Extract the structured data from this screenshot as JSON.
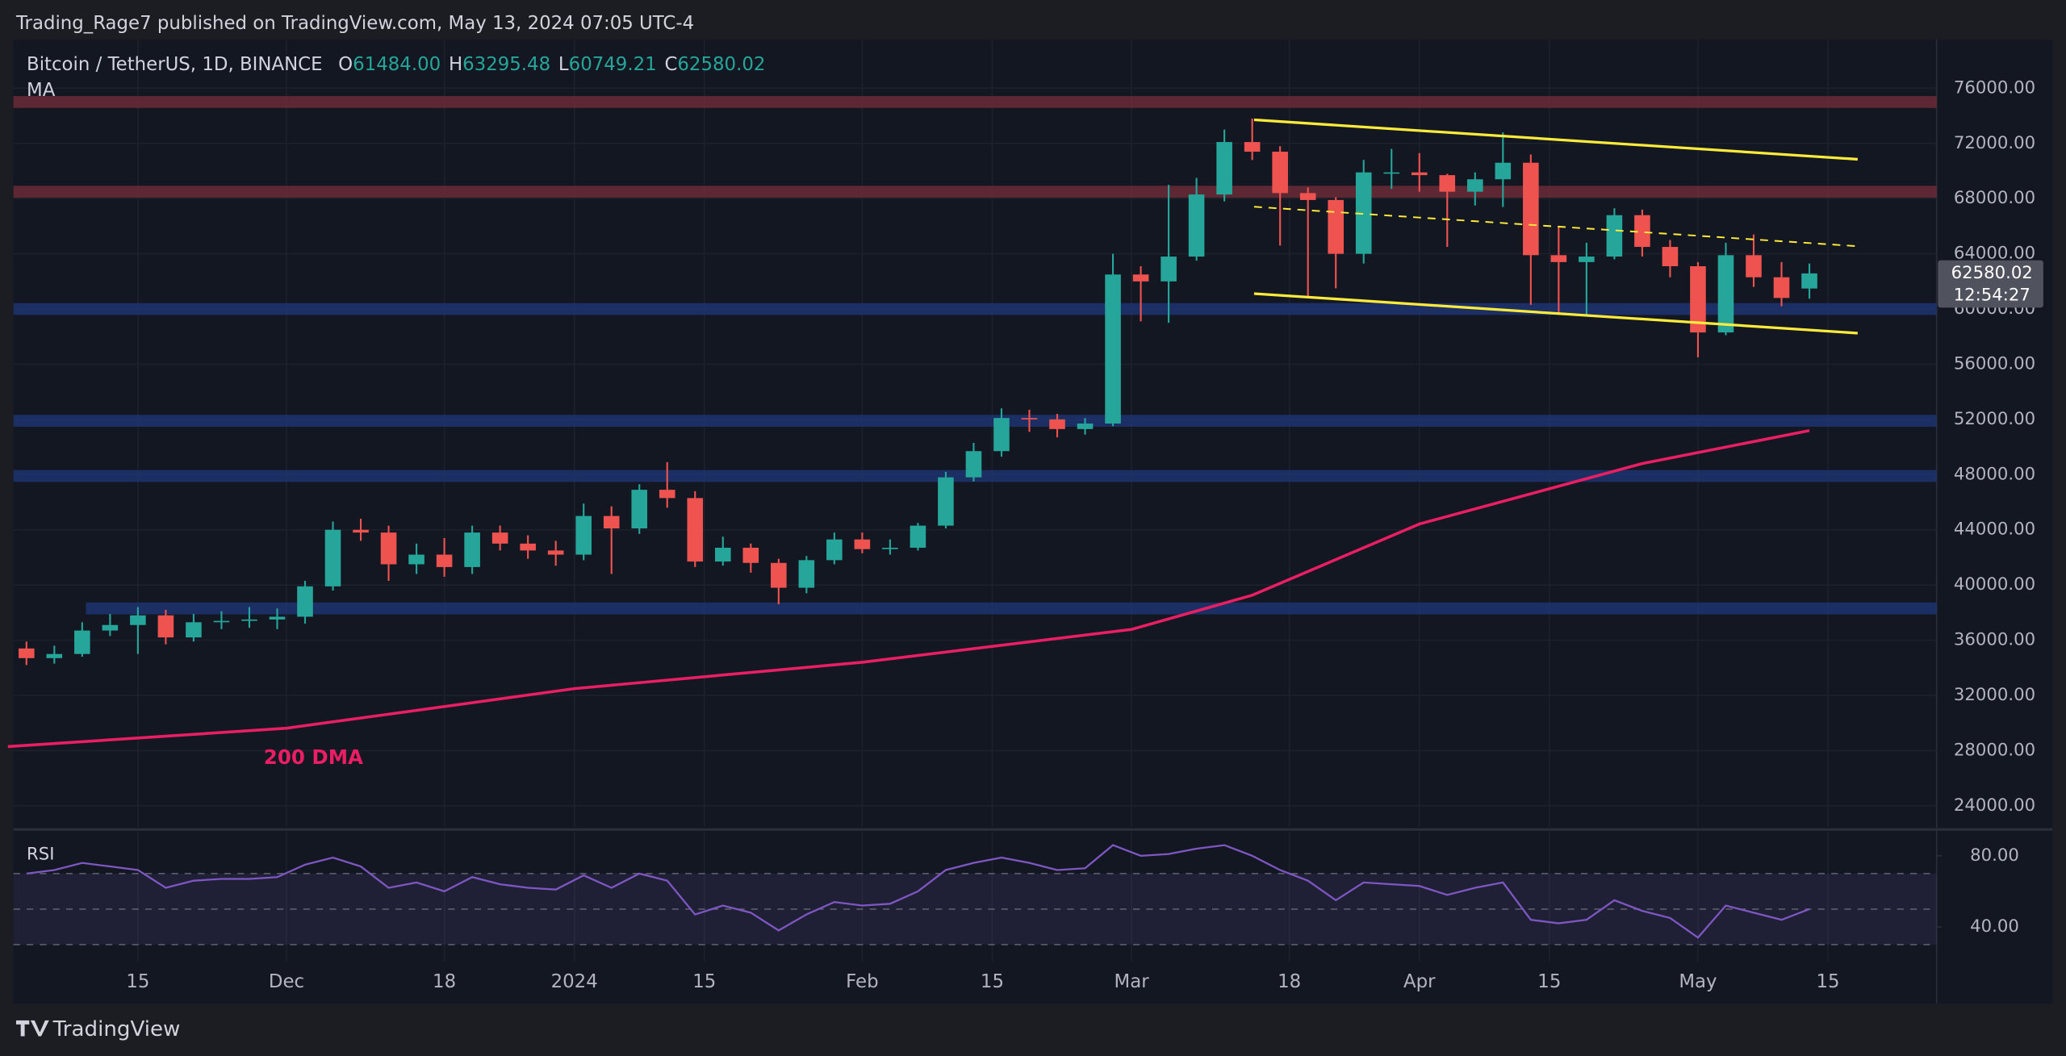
{
  "header": {
    "publisher": "Trading_Rage7 published on TradingView.com, May 13, 2024 07:05 UTC-4"
  },
  "chart_data": [
    {
      "type": "candlestick",
      "title": "Bitcoin / TetherUS, 1D, BINANCE",
      "indicator": "MA",
      "legend": [
        {
          "key": "O",
          "value": "61484.00"
        },
        {
          "key": "H",
          "value": "63295.48"
        },
        {
          "key": "L",
          "value": "60749.21"
        },
        {
          "key": "C",
          "value": "62580.02"
        }
      ],
      "x": [
        2,
        5,
        8,
        11,
        14,
        17,
        20,
        23,
        26,
        29,
        32,
        35,
        38,
        41,
        44,
        47,
        50,
        53,
        56,
        59,
        62,
        65,
        68,
        71,
        74,
        77,
        80,
        83,
        86,
        89,
        92,
        95,
        98,
        101,
        104,
        107,
        110,
        113,
        116,
        119,
        122,
        125,
        128,
        131,
        134,
        137,
        140,
        143,
        146,
        149,
        152,
        155,
        158,
        161,
        164,
        167,
        170,
        173,
        176,
        179,
        182,
        185,
        188,
        191,
        194
      ],
      "open": [
        35400,
        34700,
        35000,
        36700,
        37100,
        37800,
        36200,
        37300,
        37400,
        37500,
        37700,
        39900,
        44000,
        43800,
        41500,
        42200,
        41300,
        43800,
        43000,
        42500,
        42200,
        45000,
        44100,
        46900,
        46300,
        41700,
        42700,
        41600,
        39800,
        41800,
        43300,
        42600,
        42700,
        44300,
        47800,
        49700,
        52100,
        52000,
        51300,
        51700,
        62500,
        62000,
        63800,
        68300,
        72100,
        71400,
        68400,
        67900,
        64000,
        69900,
        69900,
        69700,
        68500,
        69400,
        70600,
        63900,
        63400,
        63800,
        66800,
        64500,
        63100,
        58300,
        63900,
        62300,
        61484
      ],
      "high": [
        35900,
        35600,
        37300,
        37900,
        38400,
        38200,
        37900,
        38100,
        38400,
        38300,
        40300,
        44600,
        44800,
        44300,
        43000,
        43400,
        44300,
        44300,
        43600,
        43200,
        45900,
        45700,
        47300,
        48900,
        46800,
        43500,
        43000,
        41900,
        42100,
        43800,
        43800,
        43300,
        44500,
        48200,
        50300,
        52800,
        52700,
        52400,
        52100,
        64000,
        63100,
        69000,
        69500,
        73000,
        73800,
        71800,
        68800,
        68100,
        70800,
        71600,
        71300,
        69800,
        69900,
        72800,
        71200,
        66000,
        64800,
        67300,
        67200,
        65000,
        63400,
        64800,
        65400,
        63400,
        63295.48
      ],
      "low": [
        34200,
        34300,
        34800,
        36300,
        35000,
        35700,
        35900,
        36800,
        36900,
        36800,
        37200,
        39600,
        43200,
        40300,
        40800,
        40600,
        40800,
        42500,
        41900,
        41400,
        41800,
        40800,
        43700,
        45600,
        41300,
        41400,
        40900,
        38600,
        39400,
        41500,
        42300,
        42200,
        42500,
        44100,
        47500,
        49300,
        51100,
        50700,
        50900,
        51500,
        59100,
        59000,
        63500,
        67800,
        70800,
        64600,
        60800,
        61500,
        63300,
        68700,
        68500,
        64500,
        67500,
        67400,
        60300,
        59700,
        59600,
        63600,
        63800,
        62300,
        56500,
        58100,
        61600,
        60200,
        60749.21
      ],
      "close": [
        34700,
        35000,
        36700,
        37100,
        37800,
        36200,
        37300,
        37400,
        37500,
        37700,
        39900,
        44000,
        43800,
        41500,
        42200,
        41300,
        43800,
        43000,
        42500,
        42200,
        45000,
        44100,
        46900,
        46300,
        41700,
        42700,
        41600,
        39800,
        41800,
        43300,
        42600,
        42700,
        44300,
        47800,
        49700,
        52100,
        52000,
        51300,
        51700,
        62500,
        62000,
        63800,
        68300,
        72100,
        71400,
        68400,
        67900,
        64000,
        69900,
        69900,
        69700,
        68500,
        69400,
        70600,
        63900,
        63400,
        63800,
        66800,
        64500,
        63100,
        58300,
        63900,
        62300,
        60800,
        62580.02
      ],
      "up_color": "#26a69a",
      "down_color": "#ef5350",
      "xlim": [
        0.6,
        207.7
      ],
      "ylim": [
        22470,
        79530
      ],
      "yticks": [
        {
          "value": 24000,
          "label": "24000.00"
        },
        {
          "value": 28000,
          "label": "28000.00"
        },
        {
          "value": 32000,
          "label": "32000.00"
        },
        {
          "value": 36000,
          "label": "36000.00"
        },
        {
          "value": 40000,
          "label": "40000.00"
        },
        {
          "value": 44000,
          "label": "44000.00"
        },
        {
          "value": 48000,
          "label": "48000.00"
        },
        {
          "value": 52000,
          "label": "52000.00"
        },
        {
          "value": 56000,
          "label": "56000.00"
        },
        {
          "value": 60000,
          "label": "60000.00"
        },
        {
          "value": 64000,
          "label": "64000.00"
        },
        {
          "value": 68000,
          "label": "68000.00"
        },
        {
          "value": 72000,
          "label": "72000.00"
        },
        {
          "value": 76000,
          "label": "76000.00"
        }
      ],
      "grid": true,
      "zones": [
        {
          "value": 75000,
          "color": "#6b2b36"
        },
        {
          "value": 68500,
          "color": "#6b2b36"
        },
        {
          "value": 60000,
          "color": "#1f3470"
        },
        {
          "value": 51900,
          "color": "#1f3470"
        },
        {
          "value": 47900,
          "color": "#1f3470"
        },
        {
          "value": 38300,
          "color": "#1f3470",
          "from": 8.4
        }
      ],
      "trendlines": [
        {
          "x": [
            134.2,
            199.2
          ],
          "y": [
            73710,
            70850
          ],
          "color": "#ffeb3b",
          "dashed": false
        },
        {
          "x": [
            134.2,
            199.2
          ],
          "y": [
            67410,
            64550
          ],
          "color": "#ffeb3b",
          "dashed": true
        },
        {
          "x": [
            134.2,
            199.2
          ],
          "y": [
            61115,
            58250
          ],
          "color": "#ffeb3b",
          "dashed": false
        }
      ],
      "ma": {
        "name": "200 DMA",
        "color": "#e91e63",
        "x": [
          0,
          30,
          61,
          92,
          121,
          134,
          152,
          176,
          194
        ],
        "values": [
          28290,
          29620,
          32490,
          34400,
          36780,
          39260,
          44420,
          48800,
          51190
        ]
      },
      "last_price": {
        "label": "62580.02",
        "countdown": "12:54:27",
        "value": 62580.02
      }
    },
    {
      "type": "line",
      "title": "RSI",
      "color": "#7e57c2",
      "x": [
        2,
        5,
        8,
        11,
        14,
        17,
        20,
        23,
        26,
        29,
        32,
        35,
        38,
        41,
        44,
        47,
        50,
        53,
        56,
        59,
        62,
        65,
        68,
        71,
        74,
        77,
        80,
        83,
        86,
        89,
        92,
        95,
        98,
        101,
        104,
        107,
        110,
        113,
        116,
        119,
        122,
        125,
        128,
        131,
        134,
        137,
        140,
        143,
        146,
        149,
        152,
        155,
        158,
        161,
        164,
        167,
        170,
        173,
        176,
        179,
        182,
        185,
        188,
        191,
        194
      ],
      "values": [
        70,
        72,
        76,
        74,
        72,
        62,
        66,
        67,
        67,
        68,
        75,
        79,
        74,
        62,
        65,
        60,
        68,
        64,
        62,
        61,
        69,
        62,
        70,
        66,
        47,
        52,
        48,
        38,
        47,
        54,
        52,
        53,
        60,
        72,
        76,
        79,
        76,
        72,
        73,
        86,
        80,
        81,
        84,
        86,
        80,
        72,
        66,
        55,
        65,
        64,
        63,
        58,
        62,
        65,
        44,
        42,
        44,
        55,
        49,
        45,
        34,
        52,
        48,
        44,
        50
      ],
      "levels": [
        70,
        50,
        30
      ],
      "xlim": [
        0.6,
        207.7
      ],
      "ylim": [
        20.7,
        93.3
      ],
      "yticks": [
        {
          "value": 80,
          "label": "80.00"
        },
        {
          "value": 40,
          "label": "40.00"
        }
      ],
      "xticks": [
        {
          "value": 14,
          "label": "15"
        },
        {
          "value": 30,
          "label": "Dec"
        },
        {
          "value": 47,
          "label": "18"
        },
        {
          "value": 61,
          "label": "2024"
        },
        {
          "value": 75,
          "label": "15"
        },
        {
          "value": 92,
          "label": "Feb"
        },
        {
          "value": 106,
          "label": "15"
        },
        {
          "value": 121,
          "label": "Mar"
        },
        {
          "value": 138,
          "label": "18"
        },
        {
          "value": 152,
          "label": "Apr"
        },
        {
          "value": 166,
          "label": "15"
        },
        {
          "value": 182,
          "label": "May"
        },
        {
          "value": 196,
          "label": "15"
        }
      ]
    }
  ],
  "footer": {
    "brand": "TradingView"
  }
}
